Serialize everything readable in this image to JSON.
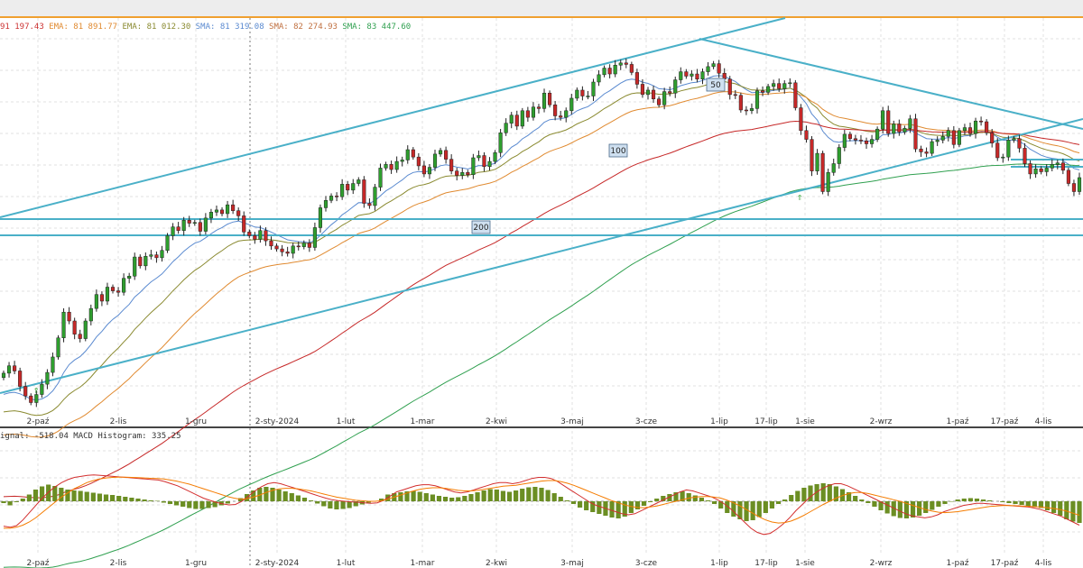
{
  "legend": [
    {
      "text": "91 197.43",
      "color": "#cc3333"
    },
    {
      "text": "EMA: 81 891.77",
      "color": "#e08a30"
    },
    {
      "text": "EMA: 81 012.30",
      "color": "#8a8a30"
    },
    {
      "text": "SMA: 81 319.08",
      "color": "#5a8ad0"
    },
    {
      "text": "SMA: 82 274.93",
      "color": "#c07040"
    },
    {
      "text": "SMA: 83 447.60",
      "color": "#30a050"
    }
  ],
  "macd_legend": {
    "text": "ignal: -518.04  MACD Histogram: 335.25",
    "color": "#e08a30"
  },
  "badges": [
    "50",
    "100",
    "200"
  ],
  "colors": {
    "up": "#2e9e2e",
    "down": "#c62828",
    "trend": "#4ab0c8",
    "hist": "#6b8e23",
    "macd": "#d32f2f",
    "signal": "#f57c00"
  },
  "chart_data": {
    "type": "candlestick",
    "x_tick_labels": [
      "2-paź",
      "2-lis",
      "1-gru",
      "2-sty-2024",
      "1-lut",
      "1-mar",
      "2-kwi",
      "3-maj",
      "3-cze",
      "1-lip",
      "17-lip",
      "1-sie",
      "2-wrz",
      "1-paź",
      "17-paź",
      "4-lis"
    ],
    "close": [
      66950,
      67450,
      67100,
      66050,
      65400,
      64950,
      65500,
      66200,
      67000,
      68050,
      69350,
      71100,
      70500,
      69600,
      69300,
      70500,
      71350,
      72300,
      71850,
      72800,
      72550,
      72450,
      73400,
      73550,
      74850,
      74250,
      74900,
      75000,
      74800,
      75300,
      76300,
      76900,
      76650,
      77350,
      77150,
      77200,
      76600,
      77500,
      77900,
      78050,
      77800,
      78400,
      78000,
      77650,
      76550,
      76300,
      76050,
      76650,
      75950,
      75600,
      75400,
      75200,
      75100,
      75600,
      75550,
      75800,
      75500,
      76850,
      78200,
      78700,
      79000,
      78950,
      79800,
      79400,
      79850,
      80100,
      78500,
      78350,
      79600,
      80900,
      81150,
      80800,
      81350,
      81450,
      82150,
      81650,
      81050,
      80500,
      80950,
      81850,
      82100,
      81500,
      80700,
      80400,
      80600,
      80450,
      81600,
      81750,
      81000,
      81350,
      81950,
      83300,
      83950,
      84500,
      83750,
      84800,
      84350,
      85050,
      84950,
      86000,
      85200,
      84450,
      84350,
      84800,
      85650,
      86200,
      85800,
      85800,
      86750,
      87250,
      87700,
      87300,
      87900,
      88050,
      87950,
      87400,
      86600,
      85900,
      86200,
      85600,
      85200,
      86100,
      86000,
      86900,
      87450,
      87150,
      87300,
      86950,
      87450,
      87800,
      88000,
      87350,
      86950,
      85900,
      85850,
      84850,
      84800,
      84950,
      86150,
      86050,
      86450,
      86650,
      86300,
      86650,
      86700,
      85000,
      83450,
      82850,
      80700,
      81900,
      79300,
      80600,
      81200,
      82300,
      83200,
      82900,
      82800,
      82750,
      82550,
      82850,
      83550,
      84800,
      83250,
      83900,
      83350,
      83600,
      84250,
      82200,
      82000,
      81900,
      82700,
      82800,
      83050,
      83450,
      82500,
      83450,
      83650,
      83250,
      84100,
      84050,
      83300,
      82600,
      81600,
      81650,
      82800,
      82900,
      82250,
      81200,
      80500,
      80850,
      80650,
      80900,
      81150,
      81250,
      80750,
      79850,
      79300,
      80250
    ],
    "macd_hist": [
      -40,
      -90,
      -20,
      60,
      150,
      260,
      330,
      370,
      340,
      300,
      260,
      240,
      230,
      210,
      190,
      170,
      150,
      140,
      120,
      100,
      80,
      60,
      40,
      20,
      10,
      -30,
      -60,
      -90,
      -120,
      -150,
      -170,
      -170,
      -150,
      -130,
      -90,
      -50,
      0,
      70,
      160,
      240,
      300,
      320,
      300,
      260,
      220,
      180,
      130,
      80,
      20,
      -50,
      -110,
      -160,
      -180,
      -170,
      -150,
      -110,
      -70,
      -30,
      0,
      60,
      150,
      180,
      200,
      220,
      230,
      210,
      180,
      150,
      120,
      100,
      80,
      90,
      120,
      160,
      200,
      240,
      270,
      260,
      230,
      210,
      240,
      280,
      310,
      320,
      300,
      250,
      180,
      100,
      20,
      -60,
      -140,
      -200,
      -240,
      -280,
      -320,
      -360,
      -380,
      -340,
      -260,
      -180,
      -100,
      -20,
      60,
      120,
      160,
      200,
      220,
      180,
      130,
      80,
      20,
      -60,
      -160,
      -260,
      -340,
      -400,
      -440,
      -420,
      -350,
      -260,
      -160,
      -60,
      40,
      140,
      230,
      300,
      350,
      380,
      400,
      380,
      330,
      270,
      200,
      120,
      40,
      -40,
      -120,
      -200,
      -270,
      -330,
      -370,
      -380,
      -360,
      -320,
      -260,
      -190,
      -120,
      -60,
      -10,
      40,
      60,
      70,
      60,
      40,
      20,
      0,
      -20,
      -40,
      -60,
      -80,
      -110,
      -130,
      -150,
      -200,
      -260,
      -320,
      -400,
      -450,
      -480
    ],
    "macd": [
      -2400,
      -2500,
      -2350,
      -1800,
      -1100,
      -400,
      300,
      900,
      1400,
      1800,
      2100,
      2300,
      2400,
      2500,
      2550,
      2500,
      2450,
      2400,
      2350,
      2300,
      2250,
      2200,
      2150,
      2100,
      2050,
      1900,
      1700,
      1500,
      1200,
      900,
      600,
      300,
      100,
      -100,
      -250,
      -350,
      -300,
      0,
      500,
      1000,
      1400,
      1700,
      1800,
      1700,
      1500,
      1300,
      1100,
      900,
      700,
      500,
      300,
      150,
      50,
      0,
      -50,
      -100,
      -150,
      -200,
      -150,
      100,
      500,
      900,
      1100,
      1300,
      1500,
      1600,
      1600,
      1500,
      1300,
      1100,
      900,
      800,
      900,
      1100,
      1300,
      1500,
      1700,
      1800,
      1800,
      1700,
      1800,
      2000,
      2200,
      2300,
      2300,
      2200,
      1900,
      1500,
      1100,
      700,
      300,
      -100,
      -400,
      -600,
      -800,
      -1000,
      -1200,
      -1300,
      -1200,
      -900,
      -600,
      -300,
      0,
      300,
      600,
      900,
      1100,
      1000,
      800,
      600,
      400,
      100,
      -300,
      -800,
      -1400,
      -2000,
      -2600,
      -3000,
      -3200,
      -3100,
      -2700,
      -2200,
      -1600,
      -900,
      -300,
      300,
      800,
      1200,
      1500,
      1700,
      1700,
      1500,
      1200,
      900,
      600,
      300,
      0,
      -300,
      -600,
      -900,
      -1200,
      -1400,
      -1500,
      -1600,
      -1500,
      -1300,
      -1000,
      -800,
      -600,
      -400,
      -300,
      -200,
      -200,
      -250,
      -300,
      -350,
      -400,
      -450,
      -500,
      -550,
      -650,
      -800,
      -1000,
      -1200,
      -1400,
      -1700,
      -2000,
      -2300
    ],
    "macd_signal": [
      -2600,
      -2600,
      -2500,
      -2300,
      -2000,
      -1600,
      -1100,
      -600,
      -100,
      400,
      800,
      1200,
      1500,
      1800,
      2000,
      2150,
      2250,
      2300,
      2330,
      2330,
      2300,
      2280,
      2250,
      2220,
      2200,
      2150,
      2050,
      1950,
      1800,
      1650,
      1450,
      1250,
      1050,
      850,
      650,
      450,
      300,
      200,
      250,
      400,
      600,
      850,
      1050,
      1200,
      1250,
      1250,
      1200,
      1100,
      1000,
      850,
      700,
      550,
      400,
      300,
      200,
      100,
      50,
      0,
      0,
      50,
      200,
      400,
      600,
      800,
      1000,
      1150,
      1250,
      1300,
      1300,
      1250,
      1150,
      1050,
      1000,
      1000,
      1050,
      1150,
      1250,
      1350,
      1450,
      1500,
      1550,
      1650,
      1750,
      1850,
      1950,
      2000,
      2000,
      1900,
      1750,
      1550,
      1300,
      1050,
      800,
      550,
      300,
      50,
      -150,
      -350,
      -500,
      -600,
      -620,
      -550,
      -450,
      -300,
      -150,
      0,
      150,
      300,
      400,
      450,
      450,
      400,
      300,
      100,
      -150,
      -450,
      -800,
      -1150,
      -1500,
      -1800,
      -2000,
      -2100,
      -2050,
      -1900,
      -1650,
      -1350,
      -1000,
      -650,
      -300,
      0,
      300,
      550,
      750,
      850,
      850,
      750,
      600,
      450,
      300,
      150,
      0,
      -200,
      -400,
      -600,
      -800,
      -950,
      -1050,
      -1100,
      -1050,
      -1000,
      -900,
      -800,
      -700,
      -600,
      -500,
      -450,
      -420,
      -420,
      -430,
      -450,
      -480,
      -520,
      -560,
      -620,
      -700,
      -800,
      -950,
      -1150,
      -1350
    ]
  }
}
